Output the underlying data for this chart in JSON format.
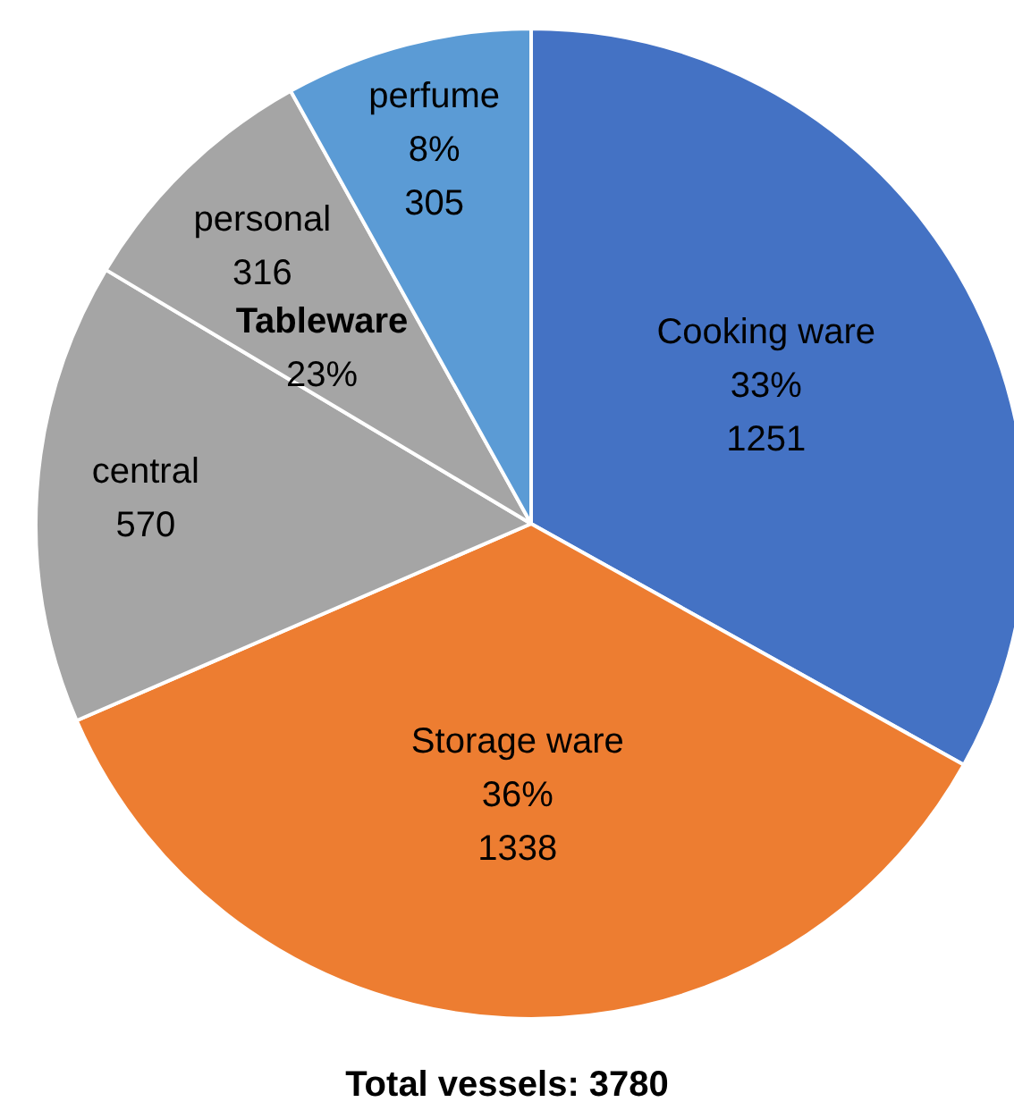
{
  "chart_data": {
    "type": "pie",
    "categories": [
      "Cooking ware",
      "Storage ware",
      "central",
      "personal",
      "perfume"
    ],
    "values": [
      1251,
      1338,
      570,
      316,
      305
    ],
    "value_labels": [
      "33%\n1251",
      "36%\n1338",
      "570",
      "316",
      "8%\n305"
    ],
    "colors": [
      "#4472c4",
      "#ed7d31",
      "#a5a5a5",
      "#a5a5a5",
      "#5b9bd5"
    ],
    "annotations": [
      "Tableware\n23%",
      "Total vessels: 3780"
    ],
    "legend": false
  }
}
